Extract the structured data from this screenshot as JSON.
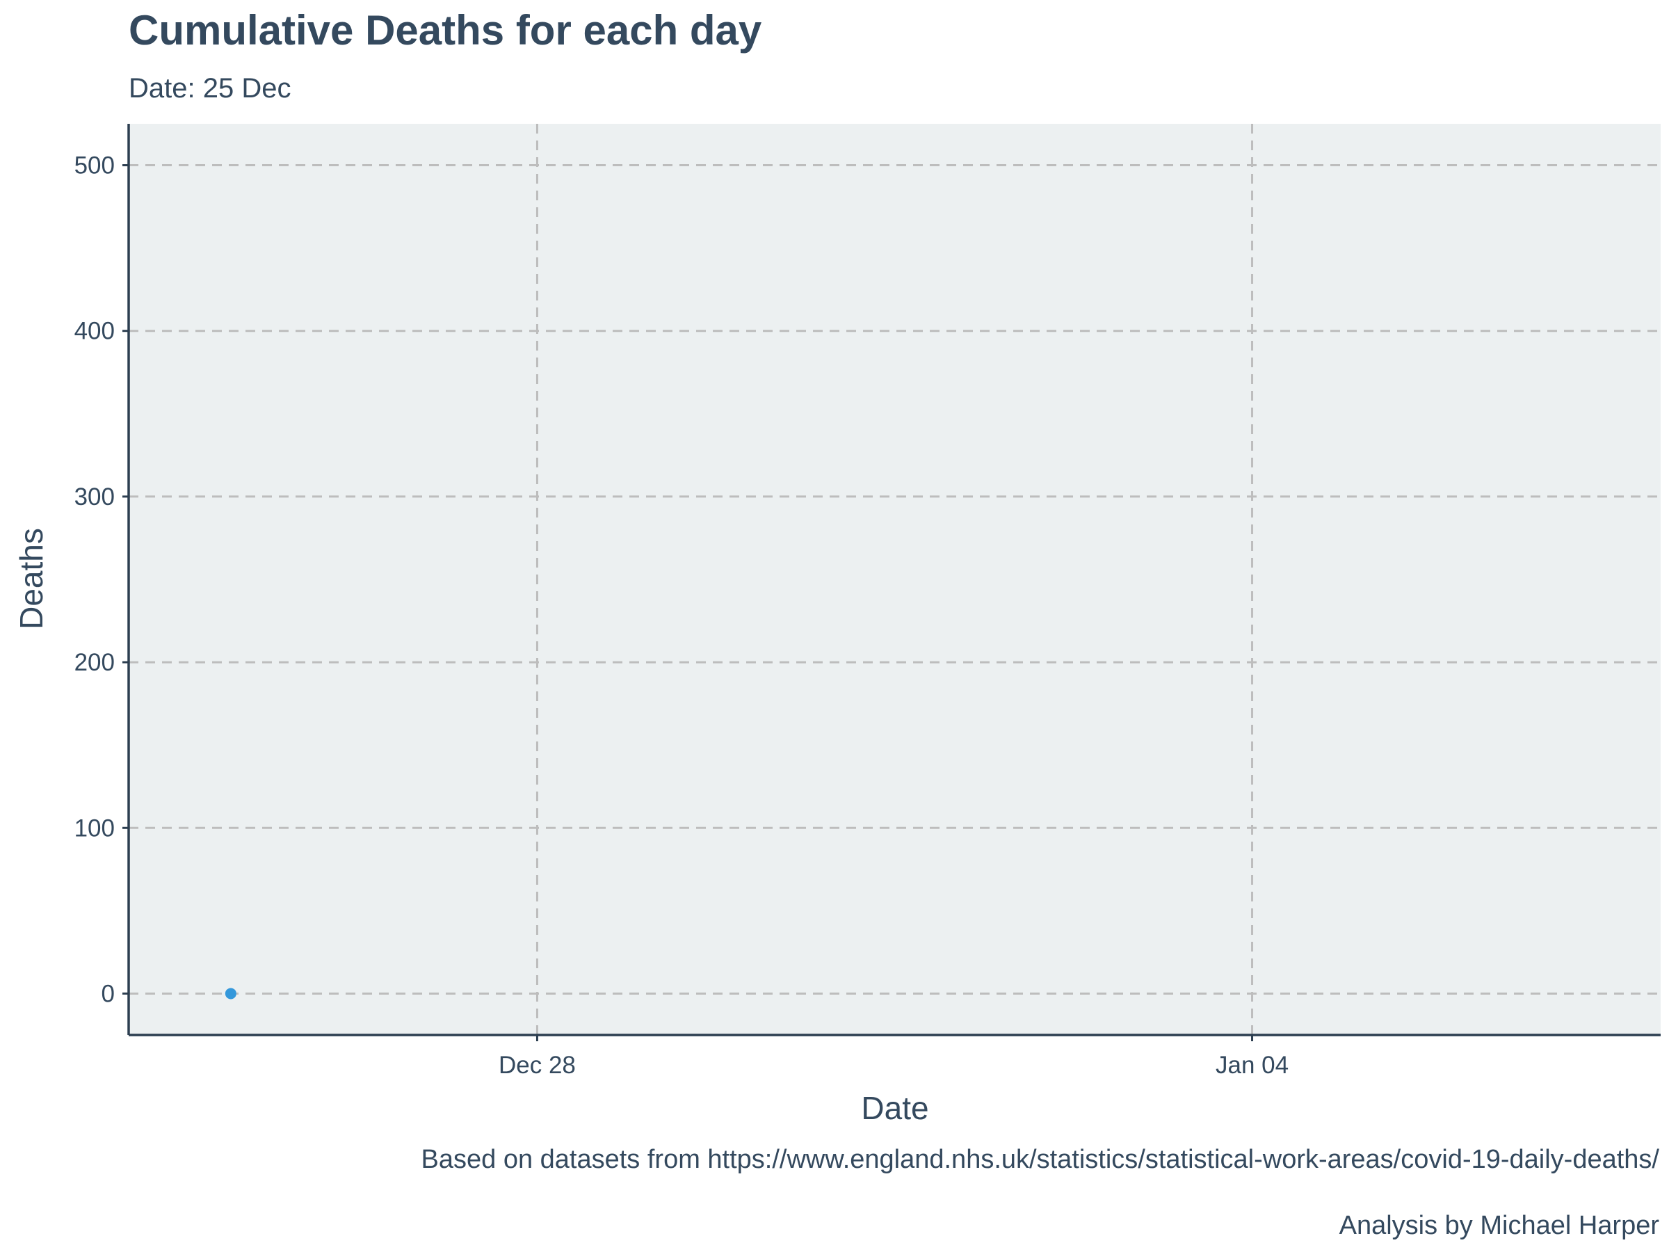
{
  "chart_data": {
    "type": "scatter",
    "title": "Cumulative Deaths for each day",
    "subtitle": "Date: 25 Dec",
    "xlabel": "Date",
    "ylabel": "Deaths",
    "x_scale": "date",
    "xlim": [
      "2019-12-24",
      "2020-01-08"
    ],
    "ylim": [
      -25,
      525
    ],
    "x_ticks": [
      {
        "value": "2019-12-28",
        "label": "Dec 28"
      },
      {
        "value": "2020-01-04",
        "label": "Jan 04"
      }
    ],
    "y_ticks": [
      0,
      100,
      200,
      300,
      400,
      500
    ],
    "grid": true,
    "legend": "none",
    "series": [
      {
        "color": "#3498db",
        "points": [
          {
            "x": "2019-12-25",
            "y": 0
          }
        ]
      }
    ],
    "caption": [
      "Based on datasets from https://www.england.nhs.uk/statistics/statistical-work-areas/covid-19-daily-deaths/",
      "Analysis by Michael Harper"
    ]
  },
  "colors": {
    "panel_background": "#ecf0f1",
    "text": "#34495e",
    "axis": "#2c3e50",
    "grid": "#bdbdbd",
    "point": "#3498db"
  }
}
